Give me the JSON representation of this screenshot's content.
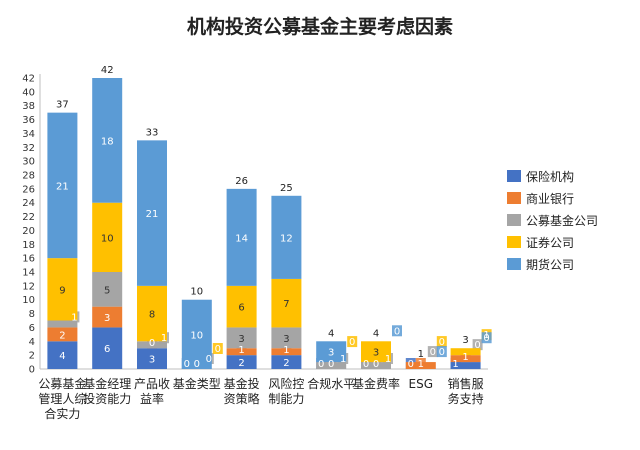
{
  "chart_data": {
    "type": "bar",
    "stacked": true,
    "title": "机构投资公募基金主要考虑因素",
    "xlabel": "",
    "ylabel": "",
    "ylim": [
      0,
      42
    ],
    "ytick_step": 2,
    "grid": false,
    "legend_position": "right",
    "categories": [
      [
        "公募基金",
        "管理人综",
        "合实力"
      ],
      [
        "基金经理",
        "投资能力"
      ],
      [
        "产品收",
        "益率"
      ],
      [
        "基金类型"
      ],
      [
        "基金投",
        "资策略"
      ],
      [
        "风险控",
        "制能力"
      ],
      [
        "合规水平"
      ],
      [
        "基金费率"
      ],
      [
        "ESG"
      ],
      [
        "销售服",
        "务支持"
      ]
    ],
    "totals": [
      37,
      42,
      33,
      10,
      26,
      25,
      4,
      4,
      1,
      3
    ],
    "series": [
      {
        "name": "保险机构",
        "color": "#4472C4",
        "values": [
          4,
          6,
          3,
          0,
          2,
          2,
          0,
          0,
          0,
          1
        ]
      },
      {
        "name": "商业银行",
        "color": "#ED7D31",
        "values": [
          2,
          3,
          0,
          0,
          1,
          1,
          0,
          0,
          1,
          1
        ]
      },
      {
        "name": "公募基金公司",
        "color": "#A5A5A5",
        "values": [
          1,
          5,
          1,
          0,
          3,
          3,
          1,
          1,
          0,
          0
        ]
      },
      {
        "name": "证券公司",
        "color": "#FFC000",
        "values": [
          9,
          10,
          8,
          0,
          6,
          7,
          0,
          3,
          0,
          1
        ]
      },
      {
        "name": "期货公司",
        "color": "#5B9BD5",
        "values": [
          21,
          18,
          21,
          10,
          14,
          12,
          3,
          0,
          0,
          0
        ]
      }
    ]
  }
}
